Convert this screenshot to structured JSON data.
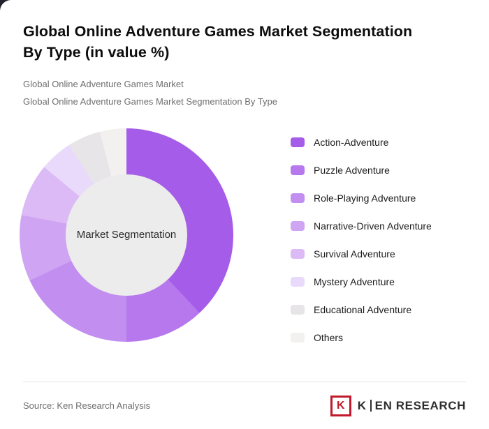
{
  "header": {
    "title_line1": "Global Online Adventure Games Market Segmentation",
    "title_line2": "By Type (in value %)",
    "subtitle1": "Global Online Adventure Games Market",
    "subtitle2": "Global Online Adventure Games Market Segmentation By Type"
  },
  "chart_data": {
    "type": "pie",
    "donut": true,
    "title": "Global Online Adventure Games Market Segmentation By Type (in value %)",
    "center_label": "Market Segmentation",
    "start_angle_deg": 0,
    "direction": "clockwise",
    "legend_position": "right",
    "categories": [
      "Action-Adventure",
      "Puzzle Adventure",
      "Role-Playing Adventure",
      "Narrative-Driven Adventure",
      "Survival Adventure",
      "Mystery Adventure",
      "Educational Adventure",
      "Others"
    ],
    "values": [
      38,
      12,
      18,
      10,
      8,
      5,
      5,
      4
    ],
    "colors": [
      "#a55ce8",
      "#b678ec",
      "#c28ff0",
      "#cfa4f3",
      "#dcbaf6",
      "#e9dafb",
      "#e7e5e7",
      "#f2f1ef"
    ],
    "hole_color": "#ececec"
  },
  "footer": {
    "source": "Source: Ken Research Analysis",
    "logo": {
      "icon_letter": "K",
      "text_k": "K",
      "text_rest": "EN RESEARCH"
    }
  }
}
